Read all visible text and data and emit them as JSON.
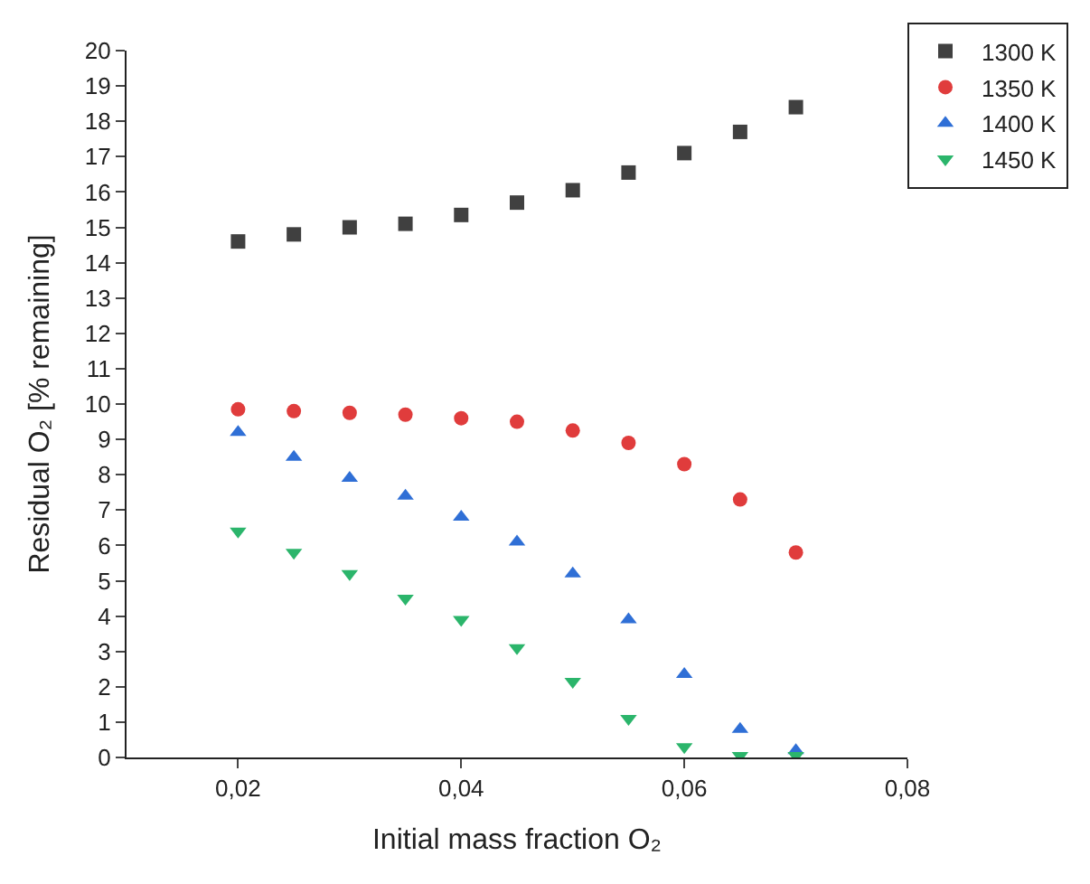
{
  "chart_data": {
    "type": "scatter",
    "xlabel": "Initial mass fraction O₂",
    "ylabel": "Residual O₂ [% remaining]",
    "x": [
      0.02,
      0.025,
      0.03,
      0.035,
      0.04,
      0.045,
      0.05,
      0.055,
      0.06,
      0.065,
      0.07
    ],
    "series": [
      {
        "name": "1300 K",
        "color": "#404040",
        "marker": "square",
        "values": [
          14.6,
          14.8,
          15.0,
          15.1,
          15.35,
          15.7,
          16.05,
          16.55,
          17.1,
          17.7,
          18.4
        ]
      },
      {
        "name": "1350 K",
        "color": "#e03c3c",
        "marker": "circle",
        "values": [
          9.85,
          9.8,
          9.75,
          9.7,
          9.6,
          9.5,
          9.25,
          8.9,
          8.3,
          7.3,
          5.8
        ]
      },
      {
        "name": "1400 K",
        "color": "#2f6fd6",
        "marker": "triangle",
        "values": [
          9.2,
          8.5,
          7.9,
          7.4,
          6.8,
          6.1,
          5.2,
          3.9,
          2.35,
          0.8,
          0.2
        ]
      },
      {
        "name": "1450 K",
        "color": "#2bb56b",
        "marker": "triangle-down",
        "values": [
          6.4,
          5.8,
          5.2,
          4.5,
          3.9,
          3.1,
          2.15,
          1.1,
          0.3,
          0.05,
          0.05
        ]
      }
    ],
    "xlim": [
      0.01,
      0.08
    ],
    "xticks": [
      {
        "value": 0.02,
        "label": "0,02"
      },
      {
        "value": 0.04,
        "label": "0,04"
      },
      {
        "value": 0.06,
        "label": "0,06"
      },
      {
        "value": 0.08,
        "label": "0,08"
      }
    ],
    "ylim": [
      0,
      20
    ],
    "yticks": [
      0,
      1,
      2,
      3,
      4,
      5,
      6,
      7,
      8,
      9,
      10,
      11,
      12,
      13,
      14,
      15,
      16,
      17,
      18,
      19,
      20
    ],
    "legend": "top right"
  }
}
